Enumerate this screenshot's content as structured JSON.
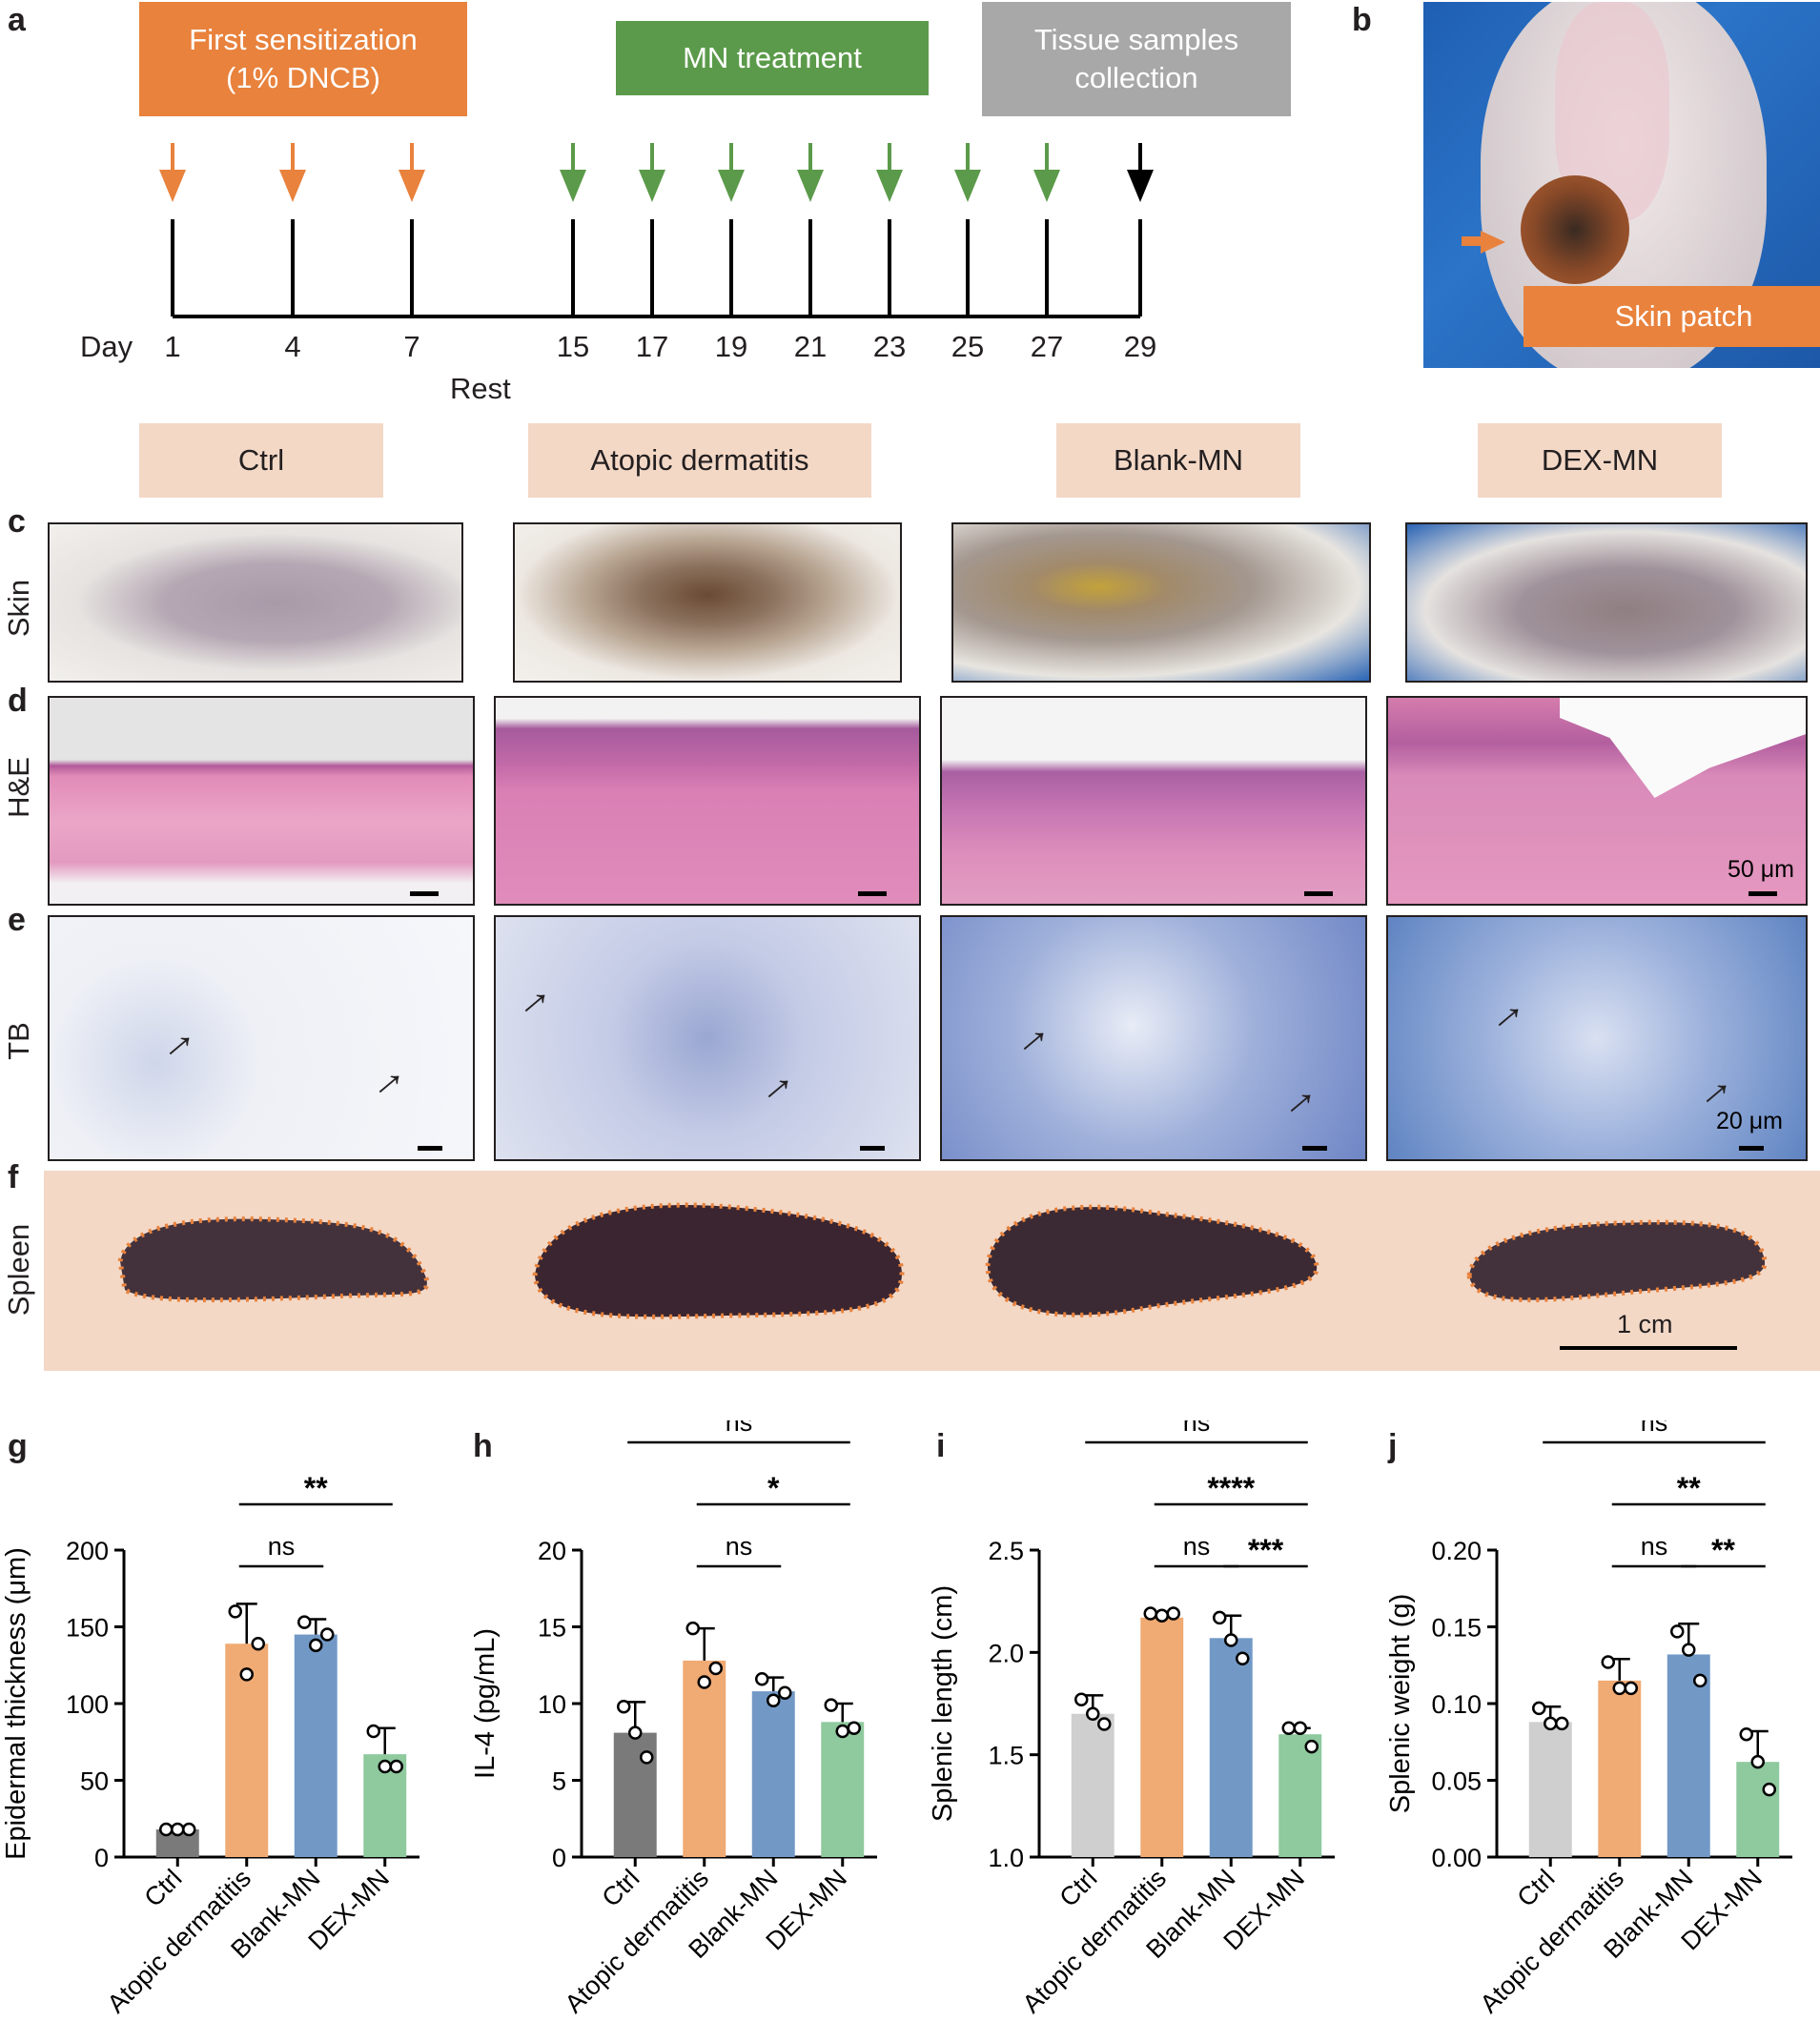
{
  "panel_letters": {
    "a": "a",
    "b": "b",
    "c": "c",
    "d": "d",
    "e": "e",
    "f": "f",
    "g": "g",
    "h": "h",
    "i": "i",
    "j": "j"
  },
  "timeline": {
    "first_sensitization": "First sensitization",
    "dncb": "(1% DNCB)",
    "mn_treatment": "MN treatment",
    "tissue_line1": "Tissue samples",
    "tissue_line2": "collection",
    "day_label": "Day",
    "days": [
      "1",
      "4",
      "7",
      "15",
      "17",
      "19",
      "21",
      "23",
      "25",
      "27",
      "29"
    ],
    "rest_label": "Rest",
    "colors": {
      "orange": "#e8823d",
      "green": "#5b9a4a",
      "gray": "#a8a8a8",
      "black": "#000000"
    }
  },
  "panel_b": {
    "skin_patch_label": "Skin patch"
  },
  "groups": [
    "Ctrl",
    "Atopic dermatitis",
    "Blank-MN",
    "DEX-MN"
  ],
  "row_labels": {
    "skin": "Skin",
    "he": "H&E",
    "tb": "TB",
    "spleen": "Spleen"
  },
  "scale_labels": {
    "he": "50 μm",
    "tb": "20 μm",
    "spleen": "1 cm"
  },
  "chart_data": [
    {
      "panel": "g",
      "type": "bar",
      "categories": [
        "Ctrl",
        "Atopic dermatitis",
        "Blank-MN",
        "DEX-MN"
      ],
      "values": [
        18,
        139,
        145,
        67
      ],
      "errors": [
        2,
        26,
        10,
        17
      ],
      "points": [
        [
          18,
          18,
          18
        ],
        [
          160,
          119,
          139
        ],
        [
          153,
          138,
          145
        ],
        [
          82,
          59,
          59
        ]
      ],
      "colors": [
        "#7a7a7a",
        "#f0aa73",
        "#7299c6",
        "#8fc99e"
      ],
      "ylabel": "Epidermal thickness (μm)",
      "ylim": [
        0,
        200
      ],
      "yticks": [
        "0",
        "50",
        "100",
        "150",
        "200"
      ],
      "sig": [
        {
          "from": 1,
          "to": 2,
          "label": "ns",
          "level": 1
        },
        {
          "from": 1,
          "to": 3,
          "label": "**",
          "level": 2
        }
      ]
    },
    {
      "panel": "h",
      "type": "bar",
      "categories": [
        "Ctrl",
        "Atopic dermatitis",
        "Blank-MN",
        "DEX-MN"
      ],
      "values": [
        8.1,
        12.8,
        10.8,
        8.8
      ],
      "errors": [
        2.0,
        2.1,
        0.9,
        1.2
      ],
      "points": [
        [
          9.8,
          8.1,
          6.5
        ],
        [
          14.9,
          11.4,
          12.3
        ],
        [
          11.6,
          10.2,
          10.7
        ],
        [
          9.9,
          8.2,
          8.4
        ]
      ],
      "colors": [
        "#7a7a7a",
        "#f0aa73",
        "#7299c6",
        "#8fc99e"
      ],
      "ylabel": "IL-4 (pg/mL)",
      "ylim": [
        0,
        20
      ],
      "yticks": [
        "0",
        "5",
        "10",
        "15",
        "20"
      ],
      "sig": [
        {
          "from": 1,
          "to": 2,
          "label": "ns",
          "level": 1
        },
        {
          "from": 1,
          "to": 3,
          "label": "*",
          "level": 2
        },
        {
          "from": 0,
          "to": 3,
          "label": "ns",
          "level": 3
        }
      ]
    },
    {
      "panel": "i",
      "type": "bar",
      "categories": [
        "Ctrl",
        "Atopic dermatitis",
        "Blank-MN",
        "DEX-MN"
      ],
      "values": [
        1.7,
        2.17,
        2.07,
        1.6
      ],
      "errors": [
        0.09,
        0.02,
        0.11,
        0.03
      ],
      "points": [
        [
          1.77,
          1.7,
          1.65
        ],
        [
          2.19,
          2.18,
          2.19
        ],
        [
          2.17,
          2.06,
          1.97
        ],
        [
          1.63,
          1.63,
          1.54
        ]
      ],
      "colors": [
        "#cfcfcf",
        "#f0aa73",
        "#7299c6",
        "#8fc99e"
      ],
      "ylabel": "Splenic length (cm)",
      "ylim": [
        1.0,
        2.5
      ],
      "yticks": [
        "1.0",
        "1.5",
        "2.0",
        "2.5"
      ],
      "sig": [
        {
          "from": 1,
          "to": 2,
          "label": "ns",
          "level": 1
        },
        {
          "from": 2,
          "to": 3,
          "label": "***",
          "level": 1
        },
        {
          "from": 1,
          "to": 3,
          "label": "****",
          "level": 2
        },
        {
          "from": 0,
          "to": 3,
          "label": "ns",
          "level": 3
        }
      ]
    },
    {
      "panel": "j",
      "type": "bar",
      "categories": [
        "Ctrl",
        "Atopic dermatitis",
        "Blank-MN",
        "DEX-MN"
      ],
      "values": [
        0.088,
        0.115,
        0.132,
        0.062
      ],
      "errors": [
        0.01,
        0.014,
        0.02,
        0.02
      ],
      "points": [
        [
          0.097,
          0.087,
          0.087
        ],
        [
          0.127,
          0.11,
          0.11
        ],
        [
          0.147,
          0.135,
          0.115
        ],
        [
          0.08,
          0.062,
          0.044
        ]
      ],
      "colors": [
        "#cfcfcf",
        "#f0aa73",
        "#7299c6",
        "#8fc99e"
      ],
      "ylabel": "Splenic weight (g)",
      "ylim": [
        0,
        0.2
      ],
      "yticks": [
        "0.00",
        "0.05",
        "0.10",
        "0.15",
        "0.20"
      ],
      "sig": [
        {
          "from": 1,
          "to": 2,
          "label": "ns",
          "level": 1
        },
        {
          "from": 2,
          "to": 3,
          "label": "**",
          "level": 1
        },
        {
          "from": 1,
          "to": 3,
          "label": "**",
          "level": 2
        },
        {
          "from": 0,
          "to": 3,
          "label": "ns",
          "level": 3
        }
      ]
    }
  ]
}
